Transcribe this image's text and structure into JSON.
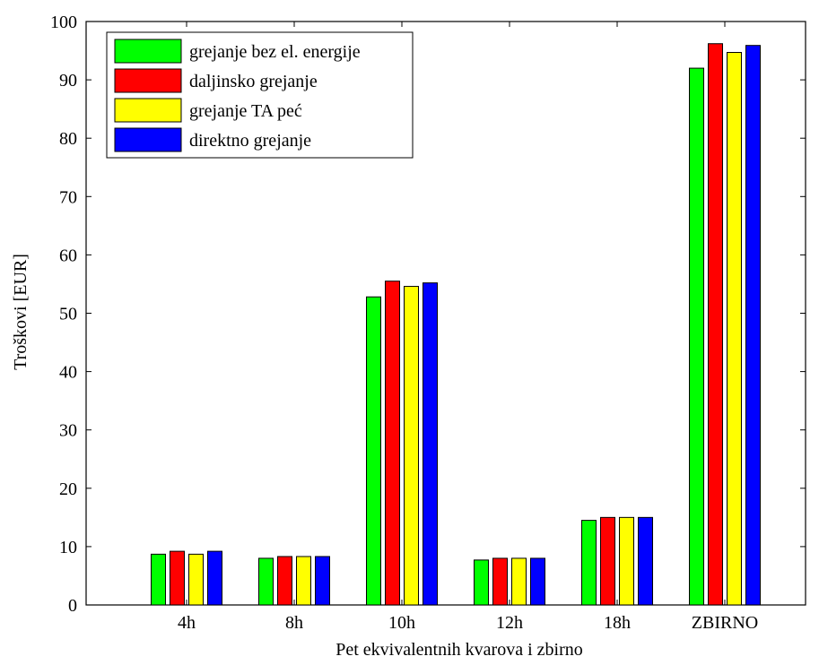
{
  "chart_data": {
    "type": "bar",
    "title": "",
    "xlabel": "Pet ekvivalentnih kvarova i zbirno",
    "ylabel": "Troškovi [EUR]",
    "categories": [
      "4h",
      "8h",
      "10h",
      "12h",
      "18h",
      "ZBIRNO"
    ],
    "series": [
      {
        "name": "grejanje bez el. energije",
        "color": "#00ff00",
        "values": [
          8.7,
          8.0,
          52.8,
          7.7,
          14.5,
          92.0
        ]
      },
      {
        "name": "daljinsko grejanje",
        "color": "#ff0000",
        "values": [
          9.2,
          8.3,
          55.5,
          8.0,
          15.0,
          96.2
        ]
      },
      {
        "name": "grejanje TA peć",
        "color": "#ffff00",
        "values": [
          8.7,
          8.3,
          54.6,
          8.0,
          15.0,
          94.7
        ]
      },
      {
        "name": "direktno grejanje",
        "color": "#0000ff",
        "values": [
          9.2,
          8.3,
          55.2,
          8.0,
          15.0,
          95.9
        ]
      }
    ],
    "ylim": [
      0,
      100
    ],
    "yticks": [
      0,
      10,
      20,
      30,
      40,
      50,
      60,
      70,
      80,
      90,
      100
    ],
    "grid": false,
    "legend_position": "top-left"
  }
}
